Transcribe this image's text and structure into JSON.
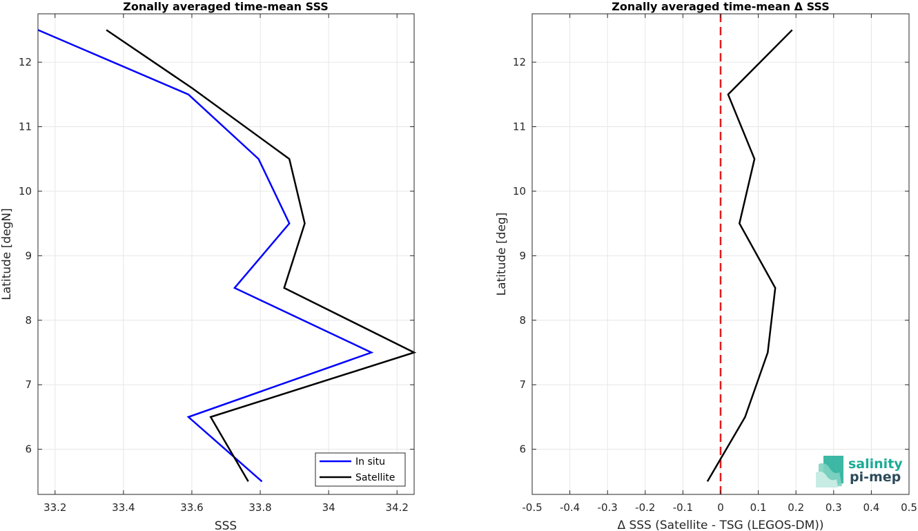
{
  "chart_data": [
    {
      "type": "line",
      "title": "Zonally averaged time-mean SSS",
      "xlabel": "SSS",
      "ylabel": "Latitude [degN]",
      "xlim": [
        33.15,
        34.25
      ],
      "ylim": [
        5.3,
        12.75
      ],
      "xticks": [
        "33.2",
        "33.4",
        "33.6",
        "33.8",
        "34",
        "34.2"
      ],
      "xtick_values": [
        33.2,
        33.4,
        33.6,
        33.8,
        34.0,
        34.2
      ],
      "yticks": [
        "6",
        "7",
        "8",
        "9",
        "10",
        "11",
        "12"
      ],
      "ytick_values": [
        6,
        7,
        8,
        9,
        10,
        11,
        12
      ],
      "grid": true,
      "legend_location": "bottom-right",
      "series": [
        {
          "name": "In situ",
          "color": "#0000ff",
          "x": [
            33.15,
            33.59,
            33.795,
            33.885,
            33.725,
            34.125,
            33.59,
            33.805
          ],
          "y": [
            12.5,
            11.5,
            10.5,
            9.5,
            8.5,
            7.5,
            6.5,
            5.5
          ]
        },
        {
          "name": "Satellite",
          "color": "#000000",
          "x": [
            33.35,
            33.6,
            33.885,
            33.93,
            33.87,
            34.25,
            33.655,
            33.765
          ],
          "y": [
            12.5,
            11.6,
            10.5,
            9.5,
            8.5,
            7.5,
            6.5,
            5.5
          ]
        }
      ]
    },
    {
      "type": "line",
      "title": "Zonally averaged time-mean Δ SSS",
      "xlabel": "Δ SSS (Satellite - TSG (LEGOS-DM))",
      "ylabel": "Latitude [deg]",
      "xlim": [
        -0.5,
        0.5
      ],
      "ylim": [
        5.3,
        12.75
      ],
      "xticks": [
        "-0.5",
        "-0.4",
        "-0.3",
        "-0.2",
        "-0.1",
        "0",
        "0.1",
        "0.2",
        "0.3",
        "0.4",
        "0.5"
      ],
      "xtick_values": [
        -0.5,
        -0.4,
        -0.3,
        -0.2,
        -0.1,
        0,
        0.1,
        0.2,
        0.3,
        0.4,
        0.5
      ],
      "yticks": [
        "6",
        "7",
        "8",
        "9",
        "10",
        "11",
        "12"
      ],
      "ytick_values": [
        6,
        7,
        8,
        9,
        10,
        11,
        12
      ],
      "grid": true,
      "reference_line": {
        "x": 0,
        "color": "#e41a1c",
        "style": "dashed"
      },
      "series": [
        {
          "color": "#000000",
          "x": [
            0.19,
            0.02,
            0.09,
            0.05,
            0.145,
            0.125,
            0.065,
            -0.035
          ],
          "y": [
            12.5,
            11.5,
            10.5,
            9.5,
            8.5,
            7.5,
            6.5,
            5.5
          ]
        }
      ]
    }
  ],
  "logo": {
    "line1": "salinity",
    "line2": "pi-mep",
    "color1": "#1aab95",
    "color2": "#2c4a5a"
  }
}
